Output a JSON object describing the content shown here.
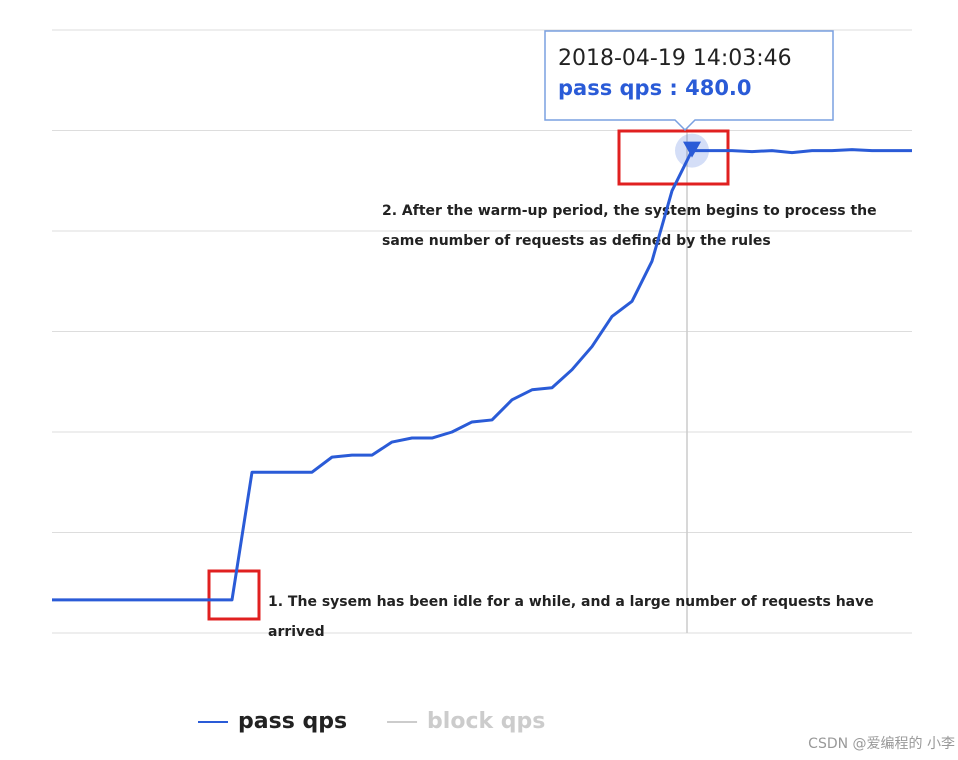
{
  "chart_data": {
    "type": "line",
    "ylim": [
      0,
      600
    ],
    "yticks": [
      0,
      100,
      200,
      300,
      400,
      500,
      600
    ],
    "grid": true,
    "series": [
      {
        "name": "pass qps",
        "color": "#2a5bd7",
        "values": [
          33,
          33,
          33,
          33,
          33,
          33,
          33,
          33,
          33,
          33,
          160,
          160,
          160,
          160,
          175,
          177,
          177,
          190,
          194,
          194,
          200,
          210,
          212,
          232,
          242,
          244,
          262,
          285,
          315,
          330,
          370,
          440,
          480,
          480,
          480,
          479,
          480,
          478,
          480,
          480,
          481,
          480,
          480,
          480
        ]
      },
      {
        "name": "block qps",
        "color": "#cccccc",
        "hidden": true
      }
    ],
    "tooltip": {
      "time": "2018-04-19 14:03:46",
      "text": "pass qps : 480.0",
      "index": 32
    },
    "annotations": [
      [
        "2. After the warm-up period, the system begins to process the",
        "same number of requests as defined by the rules"
      ],
      [
        "1. The sysem has been idle for a while, and a large number of requests have",
        "arrived"
      ]
    ]
  },
  "watermark": "CSDN @爱编程的 小李"
}
